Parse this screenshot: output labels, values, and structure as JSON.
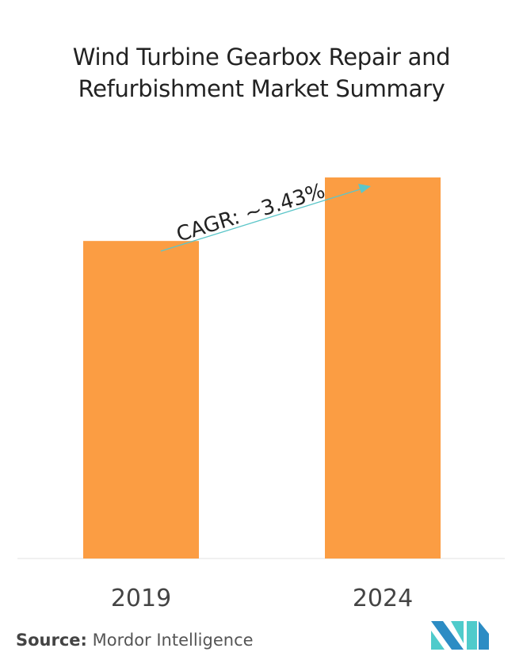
{
  "chart_data": {
    "type": "bar",
    "title": "Wind Turbine Gearbox Repair and Refurbishment Market Summary",
    "categories": [
      "2019",
      "2024"
    ],
    "values": [
      1.0,
      1.2
    ],
    "value_note_scale": "relative (no y-axis printed)",
    "annotation": "CAGR: ~3.43%",
    "bar_color": "#FB9D43",
    "arrow_color": "#5CC6C9",
    "grid": false,
    "legend": "none"
  },
  "source": {
    "label": "Source:",
    "text": "Mordor Intelligence"
  },
  "logo": {
    "colors": [
      "#2C8CC4",
      "#4FCBCB"
    ]
  }
}
